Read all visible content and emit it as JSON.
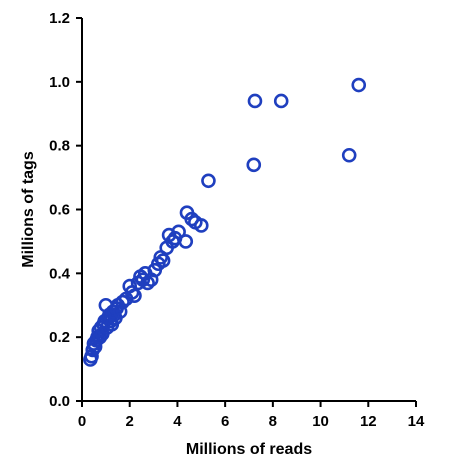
{
  "chart_data": {
    "type": "scatter",
    "xlabel": "Millions of reads",
    "ylabel": "Millions of tags",
    "xlim": [
      0,
      14
    ],
    "ylim": [
      0,
      1.2
    ],
    "xticks": [
      0,
      2,
      4,
      6,
      8,
      10,
      12,
      14
    ],
    "yticks": [
      0.0,
      0.2,
      0.4,
      0.6,
      0.8,
      1.0,
      1.2
    ],
    "xtick_labels": [
      "0",
      "2",
      "4",
      "6",
      "8",
      "10",
      "12",
      "14"
    ],
    "ytick_labels": [
      "0.0",
      "0.2",
      "0.4",
      "0.6",
      "0.8",
      "1.0",
      "1.2"
    ],
    "marker_color": "#1f3fbf",
    "grid": false,
    "points": [
      {
        "x": 0.35,
        "y": 0.13
      },
      {
        "x": 0.4,
        "y": 0.14
      },
      {
        "x": 0.45,
        "y": 0.16
      },
      {
        "x": 0.5,
        "y": 0.18
      },
      {
        "x": 0.55,
        "y": 0.17
      },
      {
        "x": 0.6,
        "y": 0.19
      },
      {
        "x": 0.65,
        "y": 0.2
      },
      {
        "x": 0.7,
        "y": 0.22
      },
      {
        "x": 0.75,
        "y": 0.2
      },
      {
        "x": 0.8,
        "y": 0.23
      },
      {
        "x": 0.85,
        "y": 0.21
      },
      {
        "x": 0.9,
        "y": 0.24
      },
      {
        "x": 0.95,
        "y": 0.25
      },
      {
        "x": 1.0,
        "y": 0.3
      },
      {
        "x": 1.05,
        "y": 0.23
      },
      {
        "x": 1.1,
        "y": 0.26
      },
      {
        "x": 1.15,
        "y": 0.27
      },
      {
        "x": 1.2,
        "y": 0.25
      },
      {
        "x": 1.25,
        "y": 0.24
      },
      {
        "x": 1.3,
        "y": 0.28
      },
      {
        "x": 1.35,
        "y": 0.27
      },
      {
        "x": 1.4,
        "y": 0.26
      },
      {
        "x": 1.45,
        "y": 0.29
      },
      {
        "x": 1.5,
        "y": 0.3
      },
      {
        "x": 1.6,
        "y": 0.28
      },
      {
        "x": 1.7,
        "y": 0.31
      },
      {
        "x": 1.85,
        "y": 0.32
      },
      {
        "x": 2.0,
        "y": 0.36
      },
      {
        "x": 2.1,
        "y": 0.34
      },
      {
        "x": 2.2,
        "y": 0.33
      },
      {
        "x": 2.35,
        "y": 0.37
      },
      {
        "x": 2.45,
        "y": 0.39
      },
      {
        "x": 2.55,
        "y": 0.38
      },
      {
        "x": 2.65,
        "y": 0.4
      },
      {
        "x": 2.75,
        "y": 0.37
      },
      {
        "x": 2.9,
        "y": 0.38
      },
      {
        "x": 3.05,
        "y": 0.41
      },
      {
        "x": 3.2,
        "y": 0.43
      },
      {
        "x": 3.3,
        "y": 0.45
      },
      {
        "x": 3.4,
        "y": 0.44
      },
      {
        "x": 3.55,
        "y": 0.48
      },
      {
        "x": 3.65,
        "y": 0.52
      },
      {
        "x": 3.8,
        "y": 0.5
      },
      {
        "x": 3.9,
        "y": 0.51
      },
      {
        "x": 4.05,
        "y": 0.53
      },
      {
        "x": 4.35,
        "y": 0.5
      },
      {
        "x": 4.4,
        "y": 0.59
      },
      {
        "x": 4.6,
        "y": 0.57
      },
      {
        "x": 4.75,
        "y": 0.56
      },
      {
        "x": 5.0,
        "y": 0.55
      },
      {
        "x": 5.3,
        "y": 0.69
      },
      {
        "x": 7.2,
        "y": 0.74
      },
      {
        "x": 7.25,
        "y": 0.94
      },
      {
        "x": 8.35,
        "y": 0.94
      },
      {
        "x": 11.2,
        "y": 0.77
      },
      {
        "x": 11.6,
        "y": 0.99
      }
    ]
  }
}
